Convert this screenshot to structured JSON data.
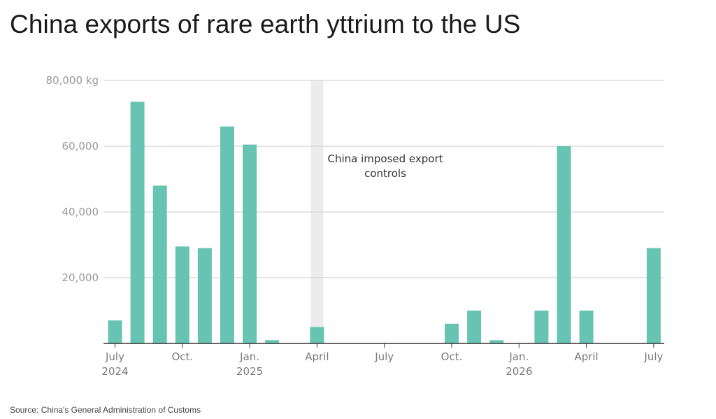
{
  "title": "China exports of rare earth yttrium to the US",
  "source": "Source: China's General Administration of Customs",
  "colors": {
    "bar": "#67c4b2",
    "grid": "#cccccc",
    "axis": "#333333",
    "shade": "#ececec"
  },
  "chart_data": {
    "type": "bar",
    "title": "China exports of rare earth yttrium to the US",
    "xlabel": "",
    "ylabel": "",
    "unit": "kg",
    "ylim": [
      0,
      80000
    ],
    "y_ticks": [
      {
        "value": 20000,
        "label": "20,000"
      },
      {
        "value": 40000,
        "label": "40,000"
      },
      {
        "value": 60000,
        "label": "60,000"
      },
      {
        "value": 80000,
        "label": "80,000 kg"
      }
    ],
    "x_ticks": [
      {
        "month": "2024-07",
        "line1": "July",
        "line2": "2024"
      },
      {
        "month": "2024-10",
        "line1": "Oct.",
        "line2": ""
      },
      {
        "month": "2025-01",
        "line1": "Jan.",
        "line2": "2025"
      },
      {
        "month": "2025-04",
        "line1": "April",
        "line2": ""
      },
      {
        "month": "2025-07",
        "line1": "July",
        "line2": ""
      },
      {
        "month": "2025-10",
        "line1": "Oct.",
        "line2": ""
      },
      {
        "month": "2026-01",
        "line1": "Jan.",
        "line2": "2026"
      },
      {
        "month": "2026-04",
        "line1": "April",
        "line2": ""
      },
      {
        "month": "2026-07",
        "line1": "July",
        "line2": ""
      }
    ],
    "categories": [
      "2024-07",
      "2024-08",
      "2024-09",
      "2024-10",
      "2024-11",
      "2024-12",
      "2025-01",
      "2025-02",
      "2025-03",
      "2025-04",
      "2025-05",
      "2025-06",
      "2025-07",
      "2025-08",
      "2025-09",
      "2025-10",
      "2025-11",
      "2025-12",
      "2026-01",
      "2026-02",
      "2026-03",
      "2026-04",
      "2026-05",
      "2026-06",
      "2026-07"
    ],
    "values": [
      7000,
      73500,
      48000,
      29500,
      29000,
      66000,
      60500,
      1000,
      0,
      5000,
      0,
      0,
      0,
      0,
      0,
      6000,
      10000,
      1000,
      0,
      10000,
      60000,
      10000,
      0,
      0,
      29000
    ],
    "annotation": {
      "month": "2025-04",
      "lines": [
        "China imposed export",
        "controls"
      ]
    },
    "grid": true,
    "legend": "none"
  }
}
